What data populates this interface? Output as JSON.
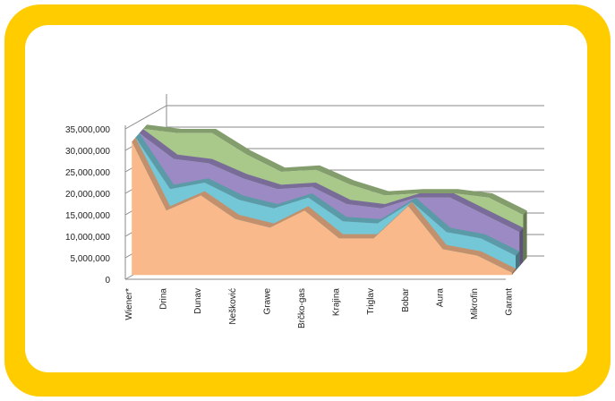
{
  "chart_data": {
    "type": "area",
    "style": "3d-stacked-area",
    "categories": [
      "Wiener*",
      "Drina",
      "Dunav",
      "Nešković",
      "Grawe",
      "Brčko-gas",
      "Krajina",
      "Triglav",
      "Bobar",
      "Aura",
      "Mikrofin",
      "Garant"
    ],
    "series": [
      {
        "color": "#f9b98a",
        "values": [
          31000000,
          15000000,
          18500000,
          13000000,
          11000000,
          15000000,
          8500000,
          8500000,
          16000000,
          6000000,
          4500000,
          500000
        ]
      },
      {
        "color": "#74c7d6",
        "values": [
          0,
          4000000,
          2000000,
          3500000,
          3500000,
          2000000,
          3000000,
          2500000,
          0,
          3000000,
          3000000,
          3000000
        ]
      },
      {
        "color": "#9b8ac4",
        "values": [
          0,
          6000000,
          3500000,
          4000000,
          3500000,
          1500000,
          3000000,
          2500000,
          0,
          7000000,
          4500000,
          4500000
        ]
      },
      {
        "color": "#a8c98a",
        "values": [
          0,
          5000000,
          6000000,
          4500000,
          3000000,
          3000000,
          3500000,
          2000000,
          0,
          0,
          3000000,
          3000000
        ]
      }
    ],
    "ylim": [
      0,
      35000000
    ],
    "yticks": [
      "0",
      "5,000,000",
      "10,000,000",
      "15,000,000",
      "20,000,000",
      "25,000,000",
      "30,000,000",
      "35,000,000"
    ],
    "grid": true,
    "legend": "none"
  },
  "colors": {
    "frame": "#ffcc00",
    "panel": "#ffffff"
  }
}
